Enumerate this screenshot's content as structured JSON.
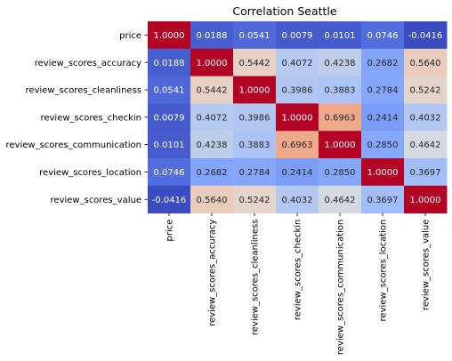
{
  "chart_data": {
    "type": "heatmap",
    "title": "Correlation Seattle",
    "xlabel": "",
    "ylabel": "",
    "rows": [
      "price",
      "review_scores_accuracy",
      "review_scores_cleanliness",
      "review_scores_checkin",
      "review_scores_communication",
      "review_scores_location",
      "review_scores_value"
    ],
    "columns": [
      "price",
      "review_scores_accuracy",
      "review_scores_cleanliness",
      "review_scores_checkin",
      "review_scores_communication",
      "review_scores_location",
      "review_scores_value"
    ],
    "values": [
      [
        1.0,
        0.0188,
        0.0541,
        0.0079,
        0.0101,
        0.0746,
        -0.0416
      ],
      [
        0.0188,
        1.0,
        0.5442,
        0.4072,
        0.4238,
        0.2682,
        0.564
      ],
      [
        0.0541,
        0.5442,
        1.0,
        0.3986,
        0.3883,
        0.2784,
        0.5242
      ],
      [
        0.0079,
        0.4072,
        0.3986,
        1.0,
        0.6963,
        0.2414,
        0.4032
      ],
      [
        0.0101,
        0.4238,
        0.3883,
        0.6963,
        1.0,
        0.285,
        0.4642
      ],
      [
        0.0746,
        0.2682,
        0.2784,
        0.2414,
        0.285,
        1.0,
        0.3697
      ],
      [
        -0.0416,
        0.564,
        0.5242,
        0.4032,
        0.4642,
        0.3697,
        1.0
      ]
    ],
    "value_format": "4 decimals",
    "colormap": "coolwarm",
    "color_range": [
      -0.0416,
      1.0
    ],
    "colorbar": false,
    "grid": false
  }
}
